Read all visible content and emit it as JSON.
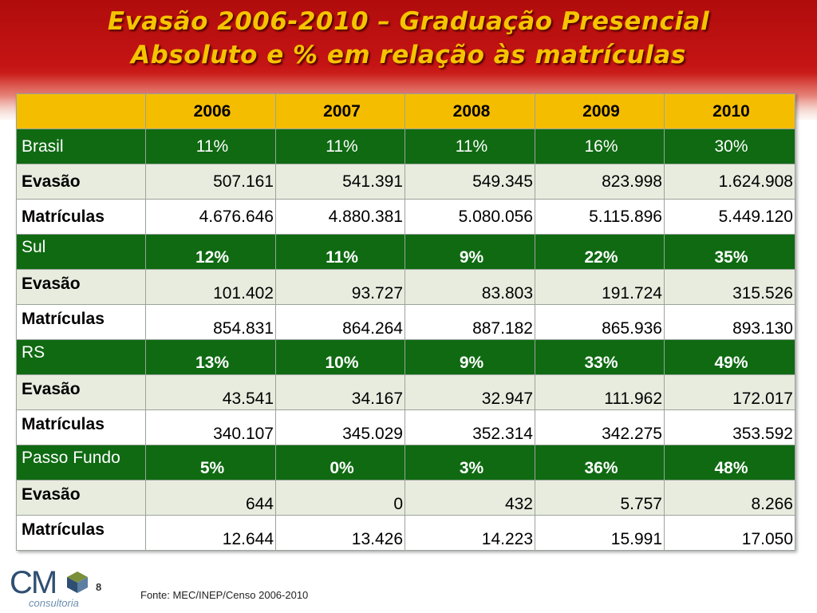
{
  "title": {
    "line1": "Evasão 2006-2010 – Graduação Presencial",
    "line2": "Absoluto e % em relação às matrículas"
  },
  "table": {
    "years": [
      "2006",
      "2007",
      "2008",
      "2009",
      "2010"
    ],
    "groups": [
      {
        "name": "Brasil",
        "rates": [
          "11%",
          "11%",
          "11%",
          "16%",
          "30%"
        ],
        "evasao_label": "Evasão",
        "evasao": [
          "507.161",
          "541.391",
          "549.345",
          "823.998",
          "1.624.908"
        ],
        "matriculas_label": "Matrículas",
        "matriculas": [
          "4.676.646",
          "4.880.381",
          "5.080.056",
          "5.115.896",
          "5.449.120"
        ]
      },
      {
        "name": "Sul",
        "rates": [
          "12%",
          "11%",
          "9%",
          "22%",
          "35%"
        ],
        "evasao_label": "Evasão",
        "evasao": [
          "101.402",
          "93.727",
          "83.803",
          "191.724",
          "315.526"
        ],
        "matriculas_label": "Matrículas",
        "matriculas": [
          "854.831",
          "864.264",
          "887.182",
          "865.936",
          "893.130"
        ]
      },
      {
        "name": "RS",
        "rates": [
          "13%",
          "10%",
          "9%",
          "33%",
          "49%"
        ],
        "evasao_label": "Evasão",
        "evasao": [
          "43.541",
          "34.167",
          "32.947",
          "111.962",
          "172.017"
        ],
        "matriculas_label": "Matrículas",
        "matriculas": [
          "340.107",
          "345.029",
          "352.314",
          "342.275",
          "353.592"
        ]
      },
      {
        "name": "Passo Fundo",
        "rates": [
          "5%",
          "0%",
          "3%",
          "36%",
          "48%"
        ],
        "evasao_label": "Evasão",
        "evasao": [
          "644",
          "0",
          "432",
          "5.757",
          "8.266"
        ],
        "matriculas_label": "Matrículas",
        "matriculas": [
          "12.644",
          "13.426",
          "14.223",
          "15.991",
          "17.050"
        ]
      }
    ]
  },
  "footer": {
    "logo_text": "CM",
    "logo_subtext": "consultoria",
    "page_number": "8",
    "source": "Fonte: MEC/INEP/Censo 2006-2010"
  },
  "colors": {
    "banner_red": "#c51414",
    "title_yellow": "#f5c400",
    "header_orange": "#f5bd00",
    "group_green": "#0f6a12",
    "row_light": "#e8ecdf"
  }
}
